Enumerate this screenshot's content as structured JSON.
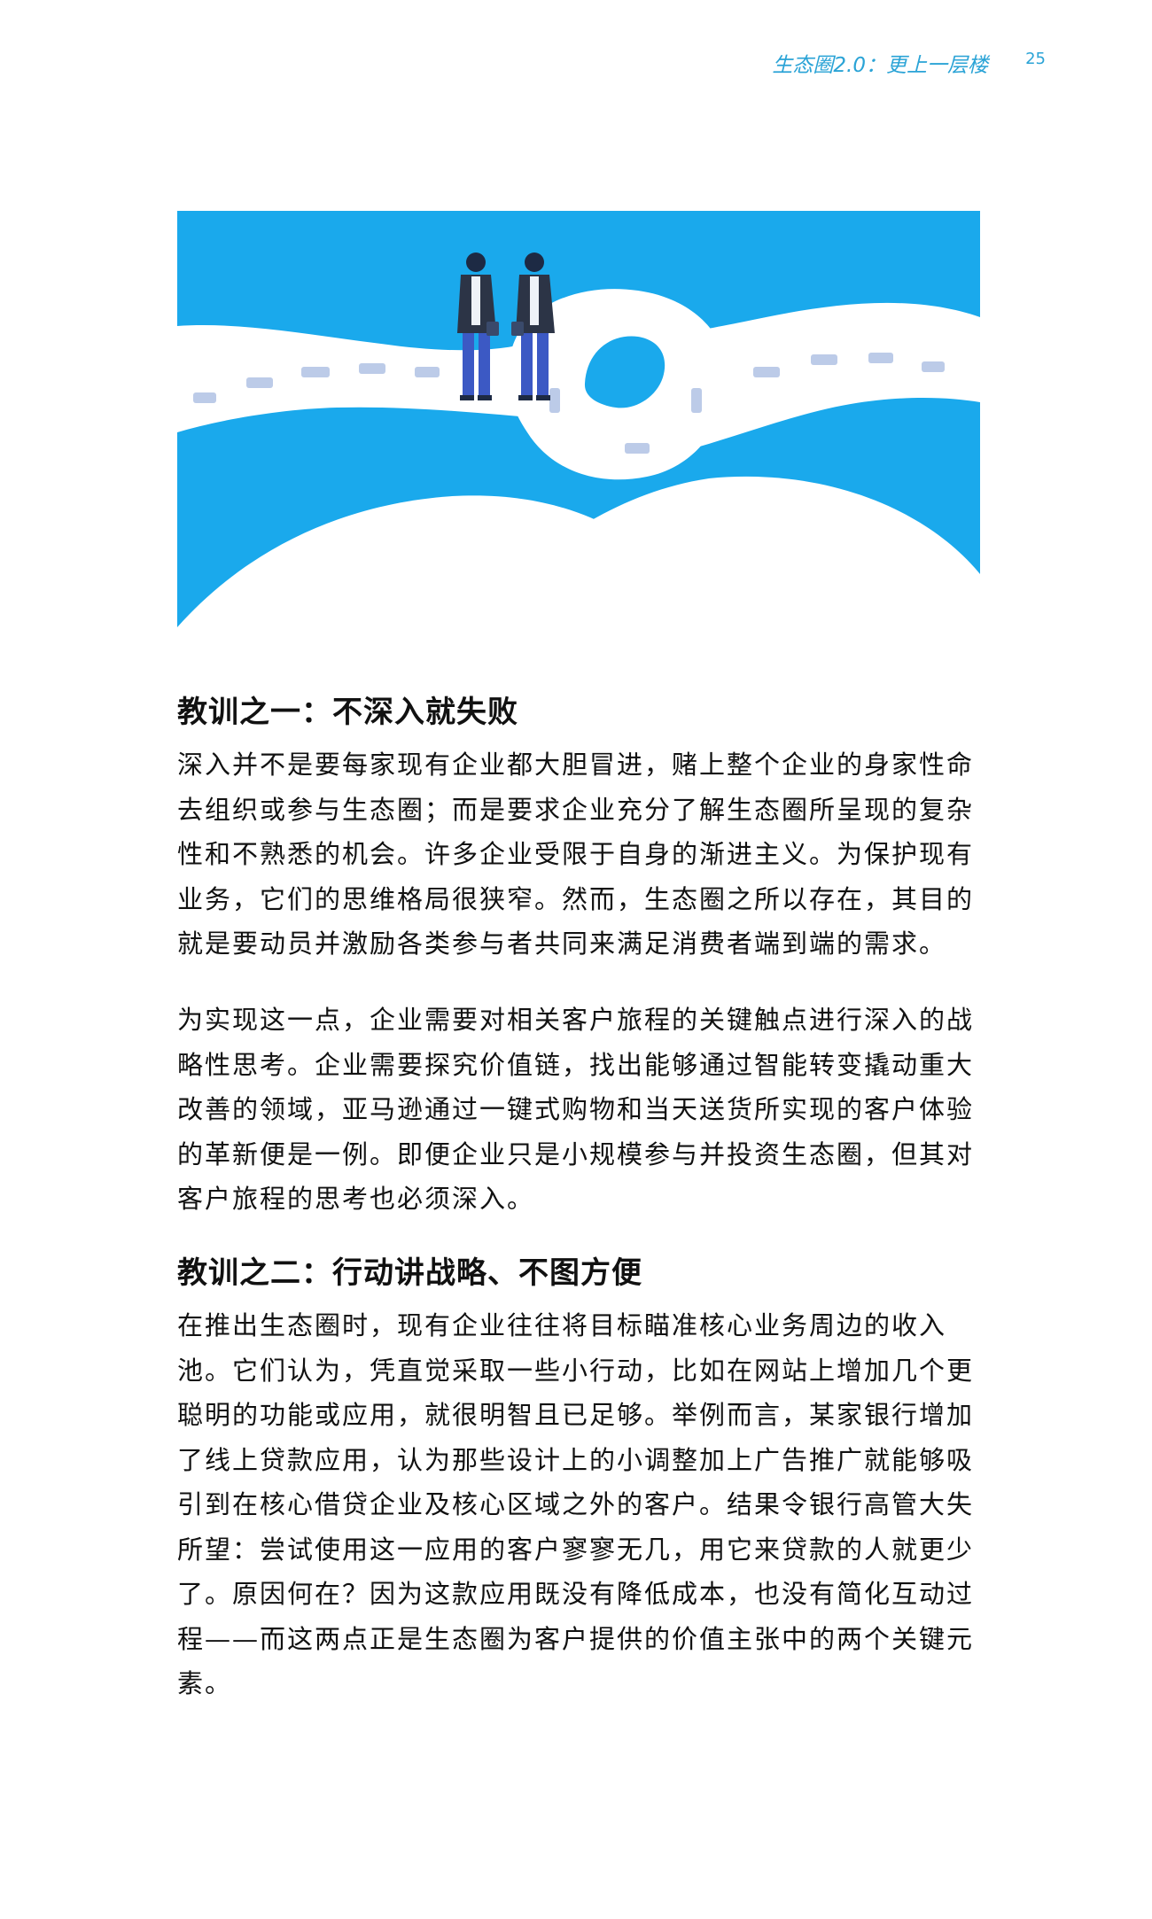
{
  "header": {
    "running_title": "生态圈2.0：更上一层楼",
    "page_number": "25"
  },
  "illustration": {
    "colors": {
      "background": "#1aa9ec",
      "hills": "#ffffff",
      "road": "#ffffff",
      "road_shadow": "#c9d6ee",
      "dashes": "#bccbe8",
      "buildings": "#cfe6f7",
      "suit": "#2c3446",
      "trousers": "#3c59c4",
      "shirt": "#eef2f8"
    }
  },
  "sections": [
    {
      "heading": "教训之一：不深入就失败",
      "paragraphs": [
        "深入并不是要每家现有企业都大胆冒进，赌上整个企业的身家性命去组织或参与生态圈；而是要求企业充分了解生态圈所呈现的复杂性和不熟悉的机会。许多企业受限于自身的渐进主义。为保护现有业务，它们的思维格局很狭窄。然而，生态圈之所以存在，其目的就是要动员并激励各类参与者共同来满足消费者端到端的需求。",
        "为实现这一点，企业需要对相关客户旅程的关键触点进行深入的战略性思考。企业需要探究价值链，找出能够通过智能转变撬动重大改善的领域，亚马逊通过一键式购物和当天送货所实现的客户体验的革新便是一例。即便企业只是小规模参与并投资生态圈，但其对客户旅程的思考也必须深入。"
      ]
    },
    {
      "heading": "教训之二：行动讲战略、不图方便",
      "paragraphs": [
        "在推出生态圈时，现有企业往往将目标瞄准核心业务周边的收入池。它们认为，凭直觉采取一些小行动，比如在网站上增加几个更聪明的功能或应用，就很明智且已足够。举例而言，某家银行增加了线上贷款应用，认为那些设计上的小调整加上广告推广就能够吸引到在核心借贷企业及核心区域之外的客户。结果令银行高管大失所望：尝试使用这一应用的客户寥寥无几，用它来贷款的人就更少了。原因何在？因为这款应用既没有降低成本，也没有简化互动过程——而这两点正是生态圈为客户提供的价值主张中的两个关键元素。"
      ]
    }
  ]
}
